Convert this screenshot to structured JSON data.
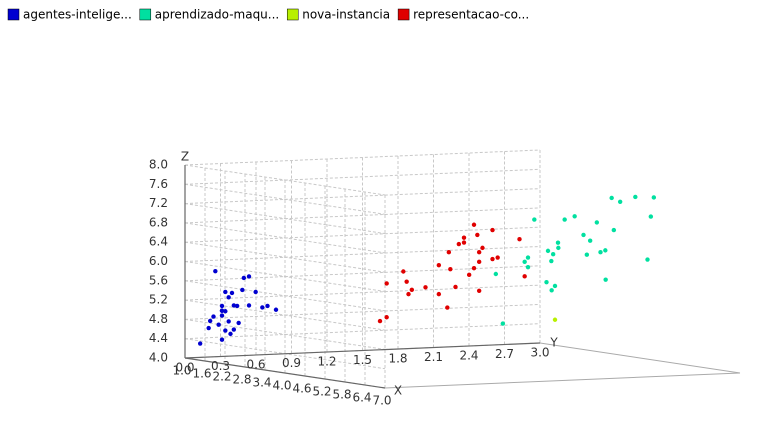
{
  "chart_data": {
    "type": "scatter3d",
    "xlabel": "X",
    "ylabel": "Y",
    "zlabel": "Z",
    "xlim": [
      1,
      7
    ],
    "ylim": [
      0,
      3
    ],
    "zlim": [
      4,
      8
    ],
    "xticks": [
      {
        "value": 1,
        "label": "1.0"
      },
      1.6,
      2.2,
      2.8,
      3.4,
      {
        "value": 4,
        "label": "4.0"
      },
      4.6,
      5.2,
      5.8,
      6.4,
      {
        "value": 7,
        "label": "7.0"
      }
    ],
    "yticks": [
      {
        "value": 0,
        "label": "0.0"
      },
      0.3,
      0.6,
      0.9,
      1.2,
      1.5,
      1.8,
      2.1,
      2.4,
      2.7,
      {
        "value": 3,
        "label": "3.0"
      }
    ],
    "zticks": [
      {
        "value": 4,
        "label": "4.0"
      },
      4.4,
      4.8,
      5.2,
      5.6,
      {
        "value": 6,
        "label": "6.0"
      },
      6.4,
      6.8,
      7.2,
      7.6,
      {
        "value": 8,
        "label": "8.0"
      }
    ],
    "grid": true,
    "series": [
      {
        "name": "agentes-intelige...",
        "color": "#0000d0",
        "x": [
          1.4,
          1.4,
          1.3,
          1.5,
          1.4,
          1.7,
          1.4,
          1.5,
          1.4,
          1.5,
          1.5,
          1.6,
          1.4,
          1.1,
          1.2,
          1.5,
          1.3,
          1.4,
          1.7,
          1.5,
          1.7,
          1.5,
          1.0,
          1.7,
          1.9,
          1.6,
          1.9,
          1.3,
          1.6,
          1.4
        ],
        "y": [
          0.2,
          0.2,
          0.2,
          0.2,
          0.2,
          0.4,
          0.3,
          0.2,
          0.2,
          0.1,
          0.2,
          0.2,
          0.1,
          0.1,
          0.2,
          0.4,
          0.4,
          0.3,
          0.3,
          0.3,
          0.2,
          0.4,
          0.2,
          0.5,
          0.2,
          0.6,
          0.4,
          0.3,
          0.2,
          0.2
        ],
        "z": [
          5.1,
          4.9,
          4.7,
          4.6,
          5.0,
          5.4,
          4.6,
          5.0,
          4.4,
          4.9,
          5.4,
          4.8,
          4.8,
          4.3,
          5.8,
          5.7,
          5.4,
          5.1,
          5.7,
          5.1,
          5.4,
          5.1,
          4.6,
          5.1,
          4.8,
          5.0,
          5.1,
          4.5,
          5.3,
          5.0
        ]
      },
      {
        "name": "aprendizado-maqu...",
        "color": "#00e0a0",
        "x": [
          6.0,
          5.1,
          5.9,
          5.6,
          5.8,
          6.6,
          4.5,
          6.3,
          5.8,
          6.1,
          5.1,
          5.3,
          5.5,
          5.0,
          5.1,
          5.3,
          5.5,
          6.7,
          6.9,
          5.0,
          5.7,
          4.9,
          6.7,
          4.9,
          5.7,
          6.0,
          4.8,
          4.9,
          5.6,
          5.8
        ],
        "y": [
          2.5,
          1.9,
          2.1,
          1.8,
          2.2,
          2.1,
          1.7,
          1.8,
          1.8,
          2.5,
          2.0,
          1.9,
          2.1,
          2.0,
          2.4,
          2.3,
          1.8,
          2.2,
          2.3,
          1.5,
          2.3,
          2.0,
          2.0,
          1.8,
          2.1,
          1.8,
          1.8,
          1.8,
          2.1,
          1.6
        ],
        "z": [
          6.3,
          5.8,
          7.1,
          6.3,
          6.5,
          7.6,
          4.9,
          7.3,
          6.7,
          7.2,
          6.5,
          6.4,
          6.8,
          5.7,
          5.8,
          6.4,
          6.5,
          7.7,
          7.7,
          6.0,
          6.9,
          5.6,
          7.7,
          6.3,
          6.7,
          7.2,
          6.2,
          6.1,
          6.4,
          7.2
        ]
      },
      {
        "name": "nova-instancia",
        "color": "#b8f000",
        "x": [
          5.0
        ],
        "y": [
          2.0
        ],
        "z": [
          5.0
        ]
      },
      {
        "name": "representacao-co...",
        "color": "#e00000",
        "x": [
          4.7,
          4.5,
          4.9,
          4.0,
          4.6,
          4.5,
          4.7,
          3.3,
          4.6,
          3.9,
          3.5,
          4.2,
          4.0,
          4.7,
          3.6,
          4.4,
          4.5,
          4.1,
          4.5,
          3.9,
          4.8,
          4.0,
          4.9,
          4.7,
          4.3,
          4.4,
          4.8,
          5.0,
          3.5,
          3.8
        ],
        "y": [
          1.4,
          1.5,
          1.5,
          1.3,
          1.5,
          1.3,
          1.6,
          1.0,
          1.3,
          1.4,
          1.0,
          1.5,
          1.0,
          1.4,
          1.3,
          1.4,
          1.5,
          1.0,
          1.5,
          1.1,
          1.8,
          1.3,
          1.5,
          1.2,
          1.3,
          1.4,
          1.4,
          1.7,
          1.0,
          1.1
        ],
        "z": [
          7.0,
          6.4,
          6.9,
          5.5,
          6.5,
          5.7,
          6.3,
          4.9,
          6.6,
          5.2,
          5.0,
          5.9,
          6.0,
          6.1,
          5.6,
          6.7,
          5.6,
          5.8,
          6.2,
          5.6,
          5.9,
          6.1,
          6.3,
          6.1,
          6.4,
          6.6,
          6.8,
          6.7,
          5.7,
          5.5
        ]
      }
    ]
  }
}
